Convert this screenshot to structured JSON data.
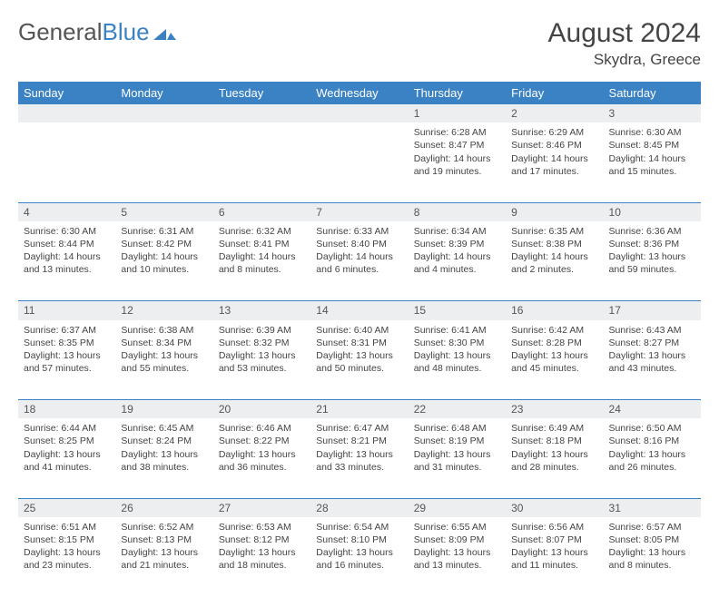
{
  "brand": {
    "part1": "General",
    "part2": "Blue"
  },
  "header": {
    "month": "August 2024",
    "location": "Skydra, Greece"
  },
  "colors": {
    "accent": "#3b82c4",
    "row_bg": "#eceef0",
    "text": "#444444"
  },
  "weekdays": [
    "Sunday",
    "Monday",
    "Tuesday",
    "Wednesday",
    "Thursday",
    "Friday",
    "Saturday"
  ],
  "rows": [
    {
      "nums": [
        "",
        "",
        "",
        "",
        "1",
        "2",
        "3"
      ],
      "cells": [
        "",
        "",
        "",
        "",
        "Sunrise: 6:28 AM\nSunset: 8:47 PM\nDaylight: 14 hours and 19 minutes.",
        "Sunrise: 6:29 AM\nSunset: 8:46 PM\nDaylight: 14 hours and 17 minutes.",
        "Sunrise: 6:30 AM\nSunset: 8:45 PM\nDaylight: 14 hours and 15 minutes."
      ]
    },
    {
      "nums": [
        "4",
        "5",
        "6",
        "7",
        "8",
        "9",
        "10"
      ],
      "cells": [
        "Sunrise: 6:30 AM\nSunset: 8:44 PM\nDaylight: 14 hours and 13 minutes.",
        "Sunrise: 6:31 AM\nSunset: 8:42 PM\nDaylight: 14 hours and 10 minutes.",
        "Sunrise: 6:32 AM\nSunset: 8:41 PM\nDaylight: 14 hours and 8 minutes.",
        "Sunrise: 6:33 AM\nSunset: 8:40 PM\nDaylight: 14 hours and 6 minutes.",
        "Sunrise: 6:34 AM\nSunset: 8:39 PM\nDaylight: 14 hours and 4 minutes.",
        "Sunrise: 6:35 AM\nSunset: 8:38 PM\nDaylight: 14 hours and 2 minutes.",
        "Sunrise: 6:36 AM\nSunset: 8:36 PM\nDaylight: 13 hours and 59 minutes."
      ]
    },
    {
      "nums": [
        "11",
        "12",
        "13",
        "14",
        "15",
        "16",
        "17"
      ],
      "cells": [
        "Sunrise: 6:37 AM\nSunset: 8:35 PM\nDaylight: 13 hours and 57 minutes.",
        "Sunrise: 6:38 AM\nSunset: 8:34 PM\nDaylight: 13 hours and 55 minutes.",
        "Sunrise: 6:39 AM\nSunset: 8:32 PM\nDaylight: 13 hours and 53 minutes.",
        "Sunrise: 6:40 AM\nSunset: 8:31 PM\nDaylight: 13 hours and 50 minutes.",
        "Sunrise: 6:41 AM\nSunset: 8:30 PM\nDaylight: 13 hours and 48 minutes.",
        "Sunrise: 6:42 AM\nSunset: 8:28 PM\nDaylight: 13 hours and 45 minutes.",
        "Sunrise: 6:43 AM\nSunset: 8:27 PM\nDaylight: 13 hours and 43 minutes."
      ]
    },
    {
      "nums": [
        "18",
        "19",
        "20",
        "21",
        "22",
        "23",
        "24"
      ],
      "cells": [
        "Sunrise: 6:44 AM\nSunset: 8:25 PM\nDaylight: 13 hours and 41 minutes.",
        "Sunrise: 6:45 AM\nSunset: 8:24 PM\nDaylight: 13 hours and 38 minutes.",
        "Sunrise: 6:46 AM\nSunset: 8:22 PM\nDaylight: 13 hours and 36 minutes.",
        "Sunrise: 6:47 AM\nSunset: 8:21 PM\nDaylight: 13 hours and 33 minutes.",
        "Sunrise: 6:48 AM\nSunset: 8:19 PM\nDaylight: 13 hours and 31 minutes.",
        "Sunrise: 6:49 AM\nSunset: 8:18 PM\nDaylight: 13 hours and 28 minutes.",
        "Sunrise: 6:50 AM\nSunset: 8:16 PM\nDaylight: 13 hours and 26 minutes."
      ]
    },
    {
      "nums": [
        "25",
        "26",
        "27",
        "28",
        "29",
        "30",
        "31"
      ],
      "cells": [
        "Sunrise: 6:51 AM\nSunset: 8:15 PM\nDaylight: 13 hours and 23 minutes.",
        "Sunrise: 6:52 AM\nSunset: 8:13 PM\nDaylight: 13 hours and 21 minutes.",
        "Sunrise: 6:53 AM\nSunset: 8:12 PM\nDaylight: 13 hours and 18 minutes.",
        "Sunrise: 6:54 AM\nSunset: 8:10 PM\nDaylight: 13 hours and 16 minutes.",
        "Sunrise: 6:55 AM\nSunset: 8:09 PM\nDaylight: 13 hours and 13 minutes.",
        "Sunrise: 6:56 AM\nSunset: 8:07 PM\nDaylight: 13 hours and 11 minutes.",
        "Sunrise: 6:57 AM\nSunset: 8:05 PM\nDaylight: 13 hours and 8 minutes."
      ]
    }
  ]
}
